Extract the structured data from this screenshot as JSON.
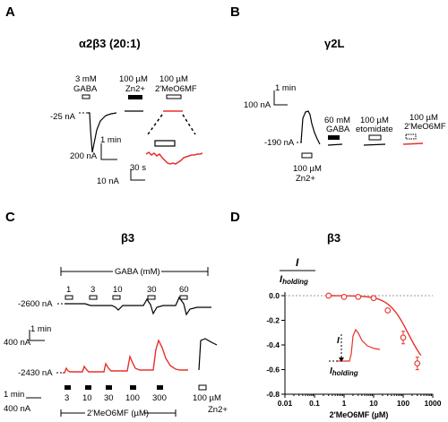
{
  "panels": {
    "a": {
      "letter": "A",
      "title": "α2β3 (20:1)",
      "app1": [
        "3 mM",
        "GABA"
      ],
      "app2": [
        "100 µM",
        "Zn2+"
      ],
      "app3": [
        "100 µM",
        "2'MeO6MF"
      ],
      "holding": "-25 nA",
      "scale_time": "1 min",
      "scale_amp": "200 nA",
      "inset_time": "30 s",
      "inset_amp": "10 nA"
    },
    "b": {
      "letter": "B",
      "title": "γ2L",
      "scale_time": "1 min",
      "scale_amp": "100 nA",
      "holding": "-190 nA",
      "app_zn": [
        "100 µM",
        "Zn2+"
      ],
      "app_gaba": [
        "60 mM",
        "GABA"
      ],
      "app_etom": [
        "100 µM",
        "etomidate"
      ],
      "app_meo": [
        "100 µM",
        "2'MeO6MF"
      ]
    },
    "c": {
      "letter": "C",
      "title": "β3",
      "gaba_label": "GABA (mM)",
      "gaba_concs": [
        "1",
        "3",
        "10",
        "30",
        "60"
      ],
      "holding1": "-2600 nA",
      "holding2": "-2430 nA",
      "scale_time": "1 min",
      "scale_amp": "400 nA",
      "scale_time2": "1 min",
      "scale_amp2": "400 nA",
      "meo_concs": [
        "3",
        "10",
        "30",
        "100",
        "300"
      ],
      "meo_label": "2'MeO6MF (µM)",
      "zn_label": [
        "100 µM",
        "Zn2+"
      ]
    },
    "d": {
      "letter": "D",
      "title": "β3",
      "inset_label": "I",
      "inset_label_sub": "holding"
    }
  },
  "colors": {
    "control": "#000000",
    "drug": "#e8302a"
  },
  "chart_data": {
    "type": "scatter",
    "title": "",
    "ylabel": "I / I holding",
    "xlabel": "2'MeO6MF (µM)",
    "xscale": "log",
    "xlim": [
      0.01,
      1000
    ],
    "ylim": [
      -0.8,
      0.0
    ],
    "x_ticks": [
      "0.01",
      "0.1",
      "1",
      "10",
      "100",
      "1000"
    ],
    "y_ticks": [
      "0.0",
      "-0.2",
      "-0.4",
      "-0.6",
      "-0.8"
    ],
    "x": [
      0.3,
      1,
      3,
      10,
      30,
      100,
      300
    ],
    "y": [
      0.0,
      -0.01,
      -0.01,
      -0.02,
      -0.12,
      -0.34,
      -0.55
    ],
    "fit_note": "Hill fit shown in red; dashed reference line at 0",
    "color": "#e8302a"
  }
}
